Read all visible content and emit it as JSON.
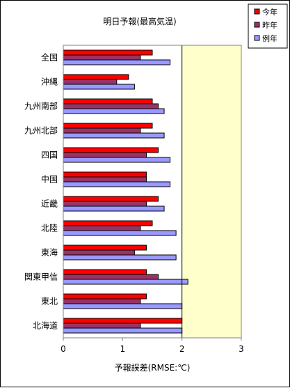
{
  "chart_data": {
    "type": "bar",
    "orientation": "horizontal",
    "title": "明日予報(最高気温)",
    "xlabel": "予報誤差(RMSE:℃)",
    "ylabel": "",
    "xlim": [
      0,
      3
    ],
    "xticks": [
      "0",
      "1",
      "2",
      "3"
    ],
    "grid": false,
    "legend_position": "top-right",
    "categories": [
      "全国",
      "沖縄",
      "九州南部",
      "九州北部",
      "四国",
      "中国",
      "近畿",
      "北陸",
      "東海",
      "関東甲信",
      "東北",
      "北海道"
    ],
    "series": [
      {
        "name": "今年",
        "color": "#ff0000",
        "values": [
          1.5,
          1.1,
          1.5,
          1.5,
          1.6,
          1.4,
          1.6,
          1.5,
          1.4,
          1.4,
          1.4,
          2.0
        ]
      },
      {
        "name": "昨年",
        "color": "#993366",
        "values": [
          1.3,
          0.9,
          1.6,
          1.3,
          1.4,
          1.4,
          1.4,
          1.3,
          1.2,
          1.6,
          1.3,
          1.3
        ]
      },
      {
        "name": "例年",
        "color": "#9999ff",
        "values": [
          1.8,
          1.2,
          1.7,
          1.7,
          1.8,
          1.8,
          1.7,
          1.9,
          1.9,
          2.1,
          2.0,
          2.0
        ]
      }
    ],
    "shaded_region": {
      "from": 2,
      "to": 3,
      "color": "#ffffcc"
    },
    "reference_line": 2
  }
}
